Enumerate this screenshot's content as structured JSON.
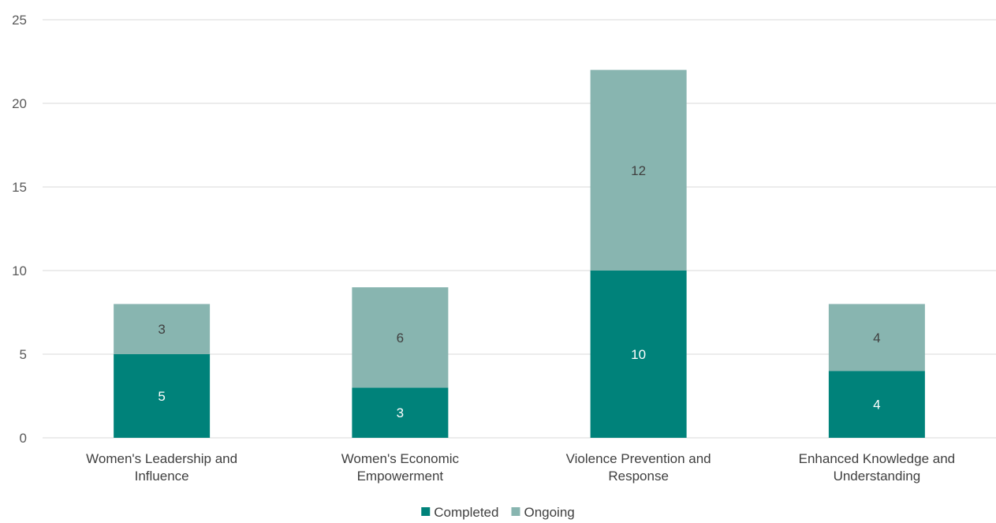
{
  "chart_data": {
    "type": "bar",
    "stacked": true,
    "categories": [
      [
        "Women's Leadership and",
        "Influence"
      ],
      [
        "Women's Economic",
        "Empowerment"
      ],
      [
        "Violence Prevention and",
        "Response"
      ],
      [
        "Enhanced Knowledge and",
        "Understanding"
      ]
    ],
    "series": [
      {
        "name": "Completed",
        "values": [
          5,
          3,
          10,
          4
        ],
        "color": "#00827a",
        "label_color": "#ffffff"
      },
      {
        "name": "Ongoing",
        "values": [
          3,
          6,
          12,
          4
        ],
        "color": "#88b5b0",
        "label_color": "#404040"
      }
    ],
    "yticks": [
      "0",
      "5",
      "10",
      "15",
      "20",
      "25"
    ],
    "ylim": [
      0,
      25
    ],
    "grid": true,
    "legend": "bottom-center"
  }
}
